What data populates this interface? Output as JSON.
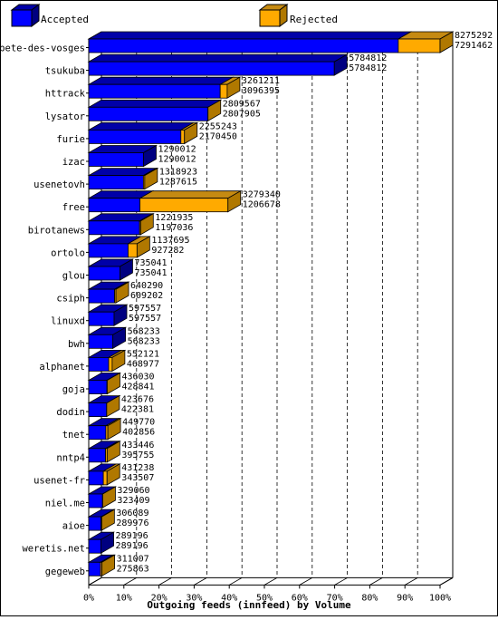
{
  "legend": {
    "accepted_label": "Accepted",
    "rejected_label": "Rejected"
  },
  "colors": {
    "accepted_front": "#0000ff",
    "accepted_top": "#0000a8",
    "accepted_side": "#000080",
    "rejected_front": "#ffaa00",
    "rejected_top": "#c58a12",
    "rejected_side": "#b07800",
    "axis": "#000000",
    "grid": "#000000",
    "background": "#ffffff"
  },
  "chart_data": {
    "type": "bar",
    "orientation": "horizontal",
    "stacked": true,
    "xlabel": "Outgoing feeds (innfeed) by Volume",
    "xlim": [
      0,
      100
    ],
    "x_ticks": [
      "0%",
      "10%",
      "20%",
      "30%",
      "40%",
      "50%",
      "60%",
      "70%",
      "80%",
      "90%",
      "100%"
    ],
    "grid": "vertical dashed",
    "legend_position": "top",
    "categories": [
      "bete-des-vosges",
      "tsukuba",
      "httrack",
      "lysator",
      "furie",
      "izac",
      "usenetovh",
      "free",
      "birotanews",
      "ortolo",
      "glou",
      "csiph",
      "linuxd",
      "bwh",
      "alphanet",
      "goja",
      "dodin",
      "tnet",
      "nntp4",
      "usenet-fr",
      "niel.me",
      "aioe",
      "weretis.net",
      "gegeweb"
    ],
    "offered": [
      8275292,
      5784812,
      3261211,
      2809567,
      2255243,
      1290012,
      1318923,
      3279340,
      1221935,
      1137695,
      735041,
      640290,
      597557,
      568233,
      552121,
      436030,
      423676,
      449770,
      433446,
      431238,
      329060,
      306089,
      289196,
      311007
    ],
    "accepted": [
      7291462,
      5784812,
      3096395,
      2807905,
      2170450,
      1290012,
      1287615,
      1206678,
      1197036,
      927282,
      735041,
      609202,
      597557,
      568233,
      468977,
      428841,
      422381,
      402856,
      395755,
      343507,
      323409,
      289976,
      289196,
      275863
    ],
    "series": [
      {
        "name": "Accepted"
      },
      {
        "name": "Rejected"
      }
    ]
  }
}
